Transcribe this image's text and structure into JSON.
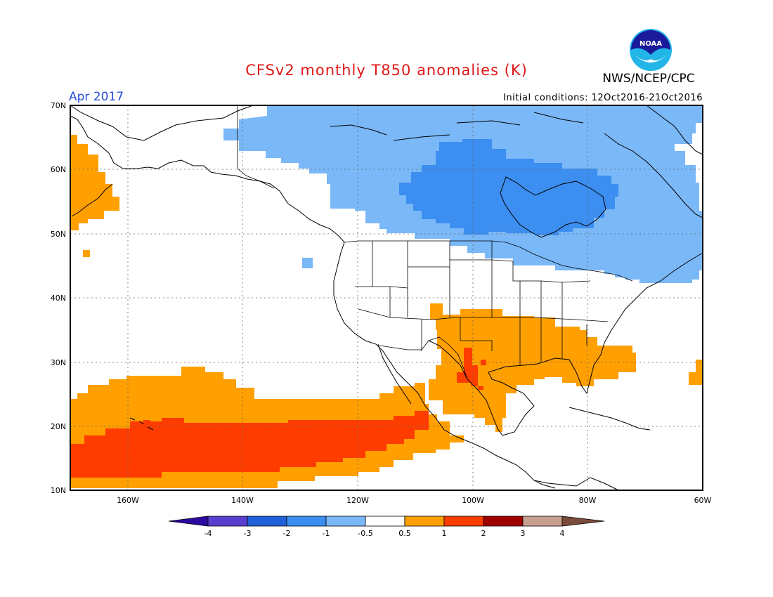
{
  "title": "CFSv2 monthly T850 anomalies (K)",
  "agency": "NWS/NCEP/CPC",
  "logo_text": "NOAA",
  "valid_month": "Apr 2017",
  "init_conditions": "Initial conditions: 12Oct2016-21Oct2016",
  "map": {
    "lon_range": [
      -170,
      -60
    ],
    "lat_range": [
      10,
      70
    ],
    "lat_ticks": [
      "70N",
      "60N",
      "50N",
      "40N",
      "30N",
      "20N",
      "10N"
    ],
    "lon_ticks": [
      "160W",
      "140W",
      "120W",
      "100W",
      "80W",
      "60W"
    ]
  },
  "colorbar": {
    "labels": [
      "-4",
      "-3",
      "-2",
      "-1",
      "-0.5",
      "0.5",
      "1",
      "2",
      "3",
      "4"
    ],
    "colors": [
      "#2b0aa0",
      "#5a3ed0",
      "#2060d8",
      "#3c8ef0",
      "#7ab8f8",
      "#ffffff",
      "#ff9f00",
      "#ff3c00",
      "#a00000",
      "#c8a090",
      "#7a4a3a"
    ]
  }
}
